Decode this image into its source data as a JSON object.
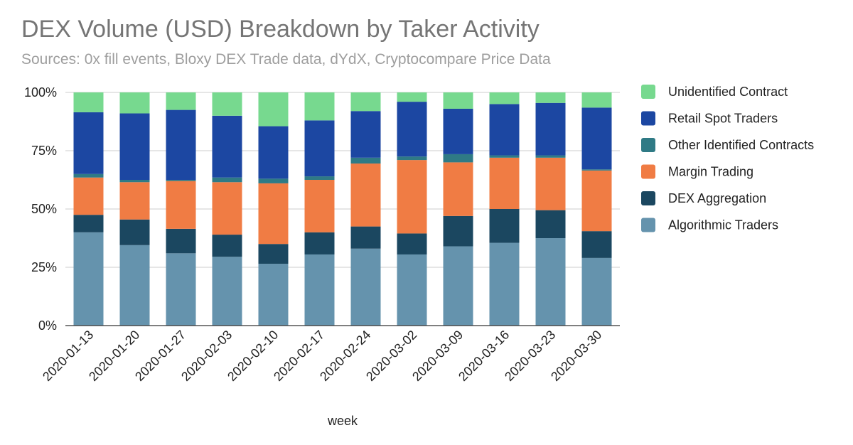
{
  "chart_data": {
    "type": "bar",
    "stacked": true,
    "normalized": true,
    "title": "DEX Volume (USD) Breakdown by Taker Activity",
    "subtitle": "Sources: 0x fill events, Bloxy DEX Trade data, dYdX, Cryptocompare Price Data",
    "xlabel": "week",
    "ylabel": "",
    "ylim": [
      0,
      100
    ],
    "yticks": [
      "0%",
      "25%",
      "50%",
      "75%",
      "100%"
    ],
    "grid": true,
    "legend_position": "right",
    "categories": [
      "2020-01-13",
      "2020-01-20",
      "2020-01-27",
      "2020-02-03",
      "2020-02-10",
      "2020-02-17",
      "2020-02-24",
      "2020-03-02",
      "2020-03-09",
      "2020-03-16",
      "2020-03-23",
      "2020-03-30"
    ],
    "series": [
      {
        "name": "Algorithmic Traders",
        "color": "#6593ad",
        "values": [
          40,
          34.5,
          31,
          29.5,
          26.5,
          30.5,
          33,
          30.5,
          34,
          35.5,
          37.5,
          29
        ]
      },
      {
        "name": "DEX Aggregation",
        "color": "#1b4760",
        "values": [
          7.5,
          11,
          10.5,
          9.5,
          8.5,
          9.5,
          9.5,
          9,
          13,
          14.5,
          12,
          11.5
        ]
      },
      {
        "name": "Margin Trading",
        "color": "#f07c44",
        "values": [
          16,
          16,
          20.5,
          22.5,
          26,
          22.5,
          27,
          31.5,
          23,
          22,
          22.5,
          26
        ]
      },
      {
        "name": "Other Identified Contracts",
        "color": "#2f7a85",
        "values": [
          1.5,
          1,
          0.5,
          2,
          2,
          1.5,
          2.5,
          1.5,
          3.5,
          1,
          1,
          0.5
        ]
      },
      {
        "name": "Retail Spot Traders",
        "color": "#1c47a2",
        "values": [
          26.5,
          28.5,
          30,
          26.5,
          22.5,
          24,
          20,
          23.5,
          19.5,
          22,
          22.5,
          26.5
        ]
      },
      {
        "name": "Unidentified Contract",
        "color": "#77d98f",
        "values": [
          8.5,
          9,
          7.5,
          10,
          14.5,
          12,
          8,
          4,
          7,
          5,
          4.5,
          6.5
        ]
      }
    ],
    "legend_order": [
      "Unidentified Contract",
      "Retail Spot Traders",
      "Other Identified Contracts",
      "Margin Trading",
      "DEX Aggregation",
      "Algorithmic Traders"
    ]
  }
}
